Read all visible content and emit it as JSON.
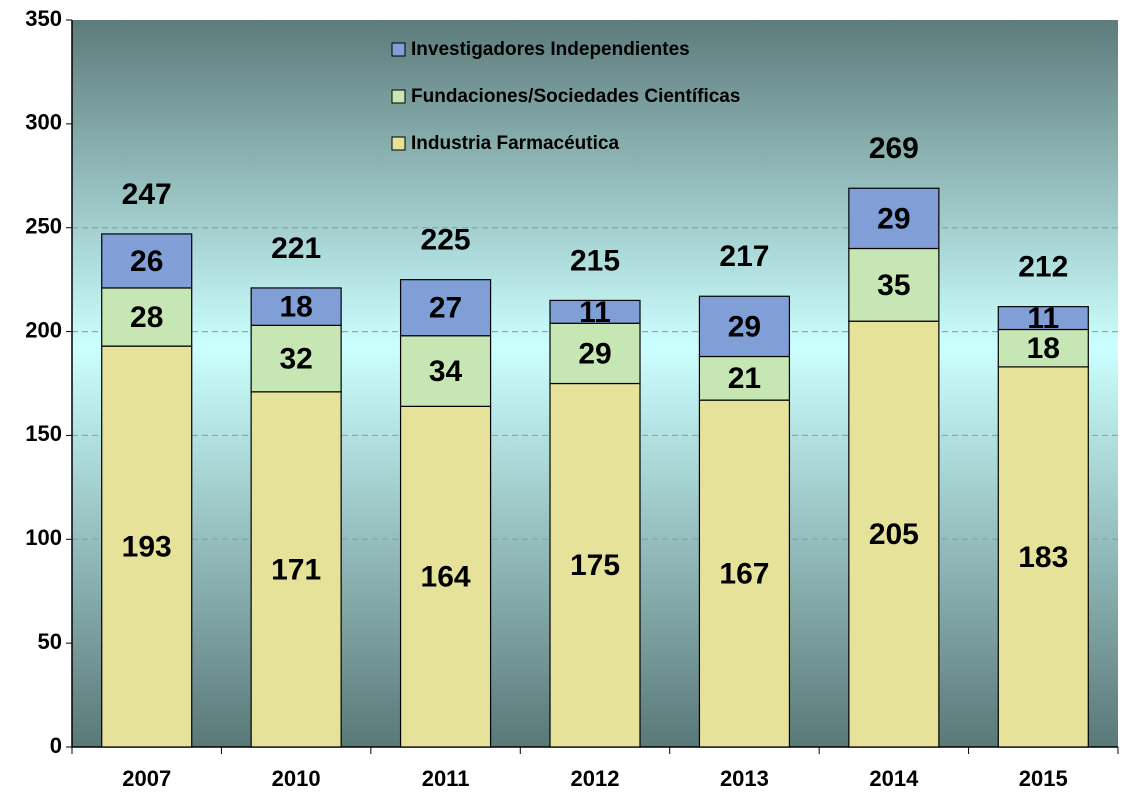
{
  "chart_data": {
    "type": "stacked_bar",
    "categories": [
      "2007",
      "2010",
      "2011",
      "2012",
      "2013",
      "2014",
      "2015"
    ],
    "series": [
      {
        "name": "Industria Farmacéutica",
        "color": "#e6e29a",
        "values": [
          193,
          171,
          164,
          175,
          167,
          205,
          183
        ]
      },
      {
        "name": "Fundaciones/Sociedades Científicas",
        "color": "#c6e6b4",
        "values": [
          28,
          32,
          34,
          29,
          21,
          35,
          18
        ]
      },
      {
        "name": "Investigadores Independientes",
        "color": "#7f9fd6",
        "values": [
          26,
          18,
          27,
          11,
          29,
          29,
          11
        ]
      }
    ],
    "totals": [
      247,
      221,
      225,
      215,
      217,
      269,
      212
    ],
    "ylim": [
      0,
      350
    ],
    "yticks": [
      0,
      50,
      100,
      150,
      200,
      250,
      300,
      350
    ],
    "grid": true,
    "legend": "top"
  }
}
